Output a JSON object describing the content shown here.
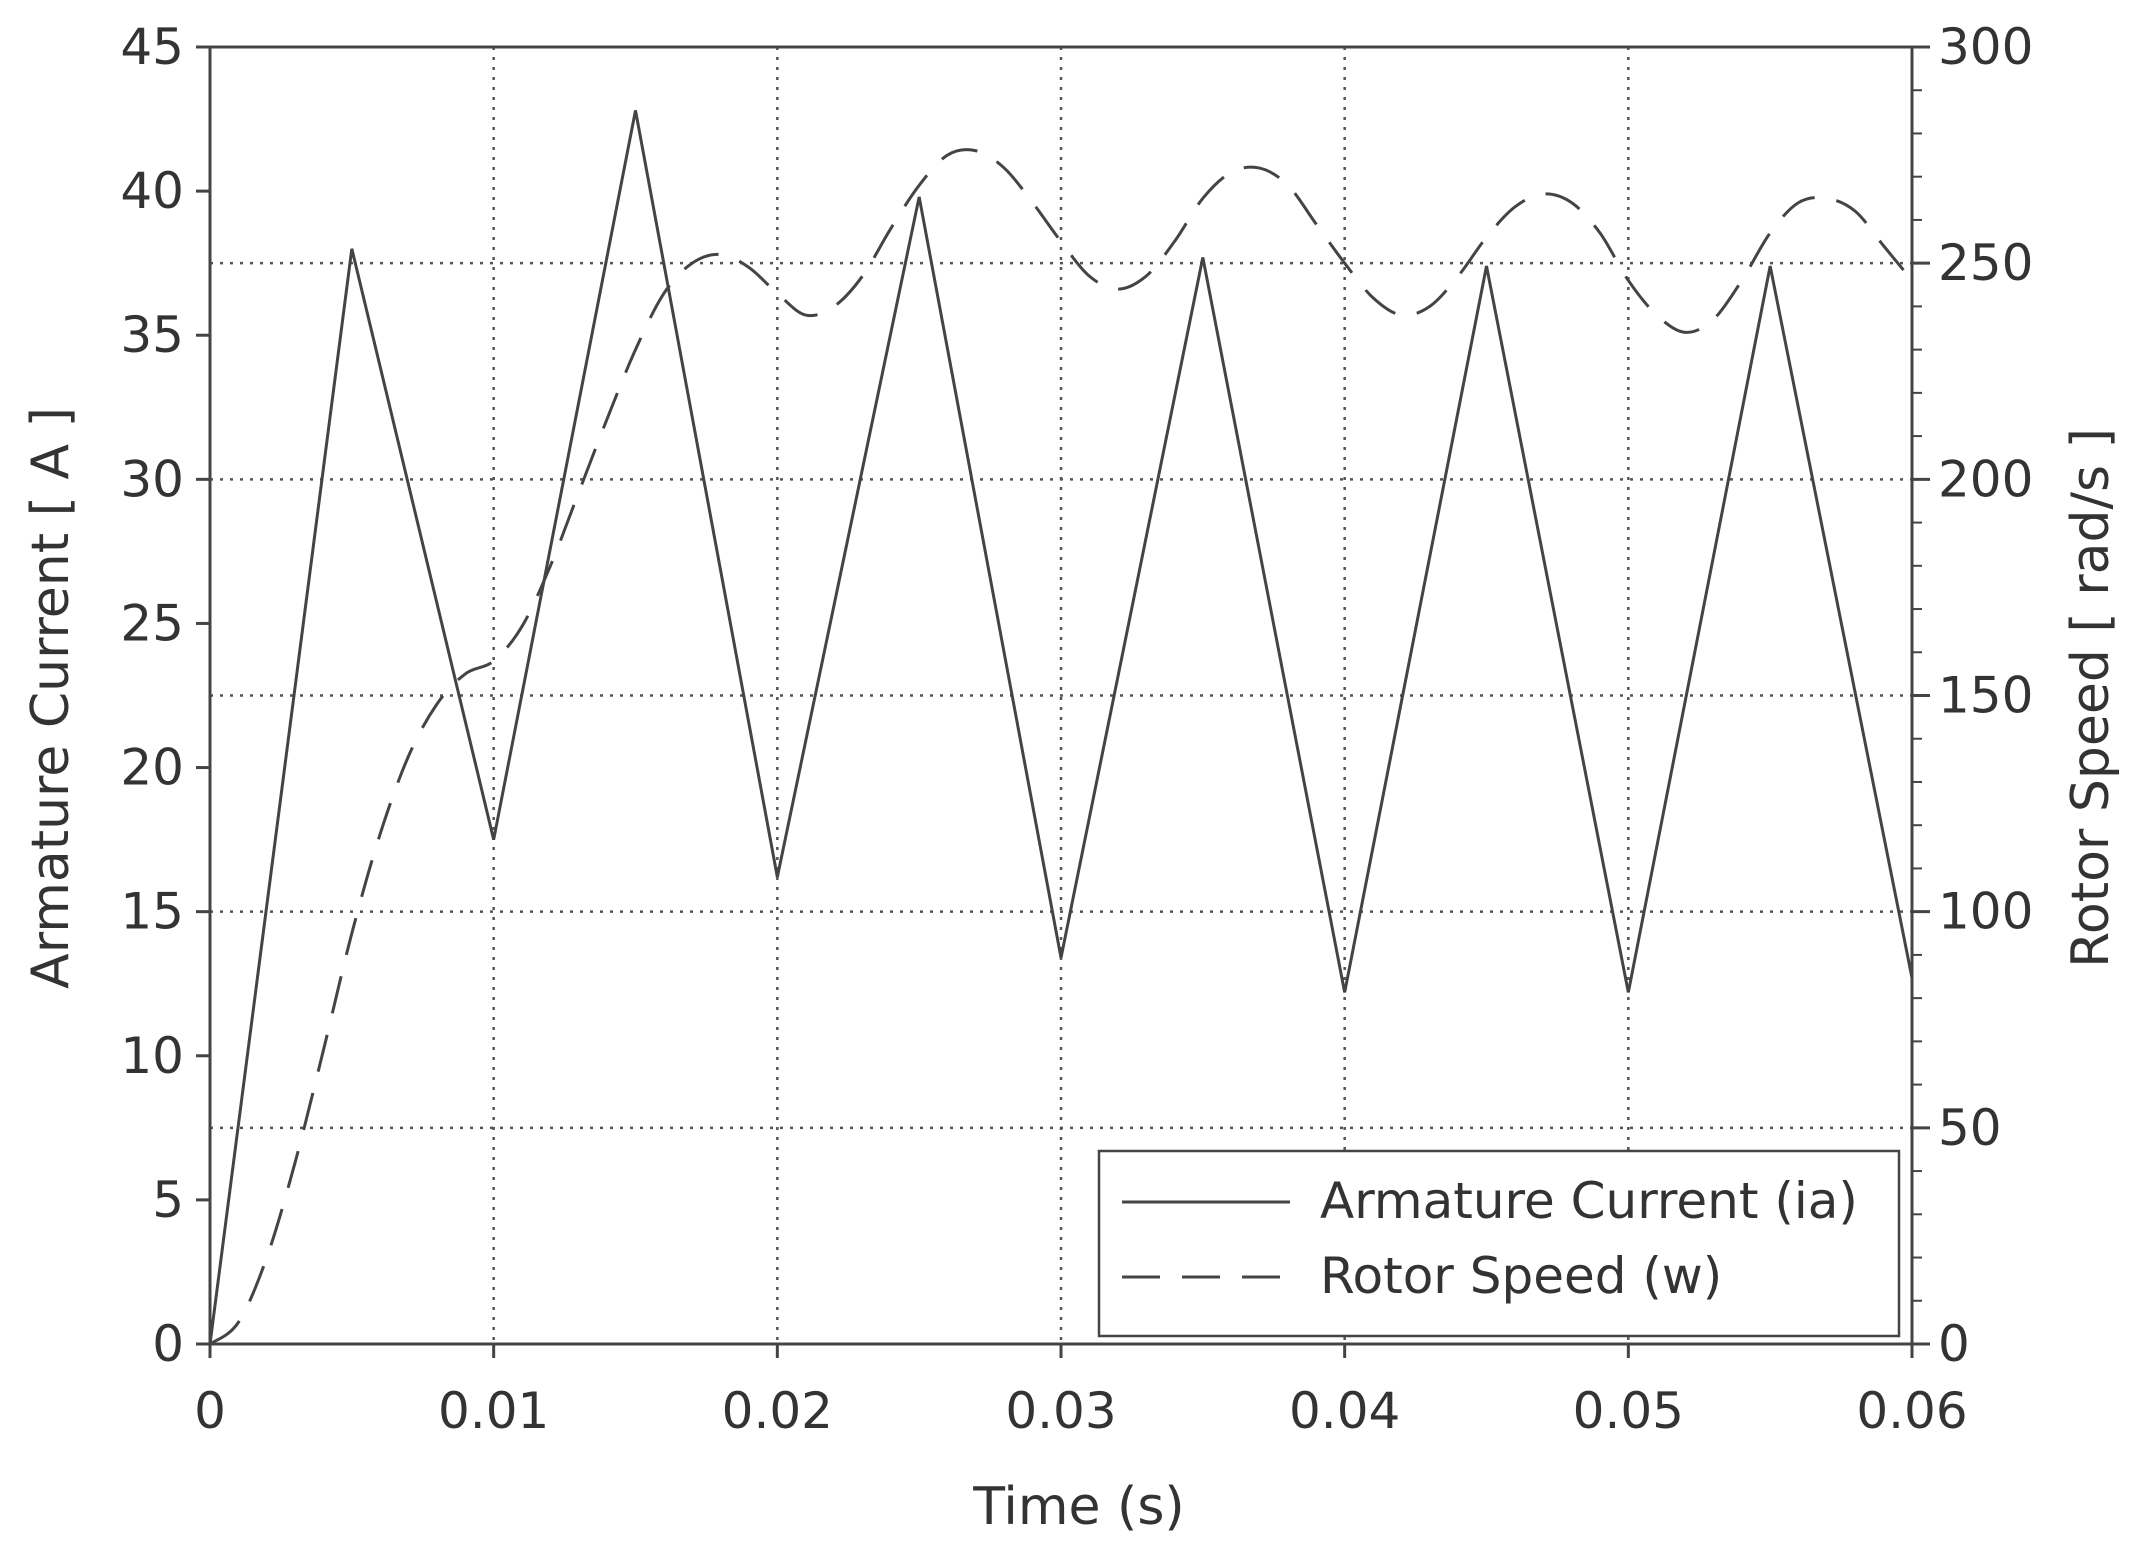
{
  "chart_data": {
    "type": "line",
    "xlabel": "Time (s)",
    "ylabel": "Armature Current  [ A ]",
    "y2label": "Rotor Speed  [ rad/s ]",
    "xlim": [
      0,
      0.06
    ],
    "ylim": [
      0,
      45
    ],
    "y2lim": [
      0,
      300
    ],
    "xticks": [
      0,
      0.01,
      0.02,
      0.03,
      0.04,
      0.05,
      0.06
    ],
    "xtick_labels": [
      "0",
      "0.01",
      "0.02",
      "0.03",
      "0.04",
      "0.05",
      "0.06"
    ],
    "yticks": [
      0,
      5,
      10,
      15,
      20,
      25,
      30,
      35,
      40,
      45
    ],
    "ytick_labels": [
      "0",
      "5",
      "10",
      "15",
      "20",
      "25",
      "30",
      "35",
      "40",
      "45"
    ],
    "y2ticks": [
      0,
      50,
      100,
      150,
      200,
      250,
      300
    ],
    "y2tick_labels": [
      "0",
      "50",
      "100",
      "150",
      "200",
      "250",
      "300"
    ],
    "grid": true,
    "legend_position": "bottom-right",
    "series": [
      {
        "name": "Armature Current (ia)",
        "axis": "left",
        "style": "solid",
        "x": [
          0,
          0.005,
          0.01,
          0.015,
          0.02,
          0.025,
          0.03,
          0.035,
          0.04,
          0.045,
          0.05,
          0.055,
          0.06
        ],
        "y": [
          0,
          38,
          17.5,
          42.8,
          16.2,
          39.8,
          13.4,
          37.7,
          12.2,
          37.4,
          12.2,
          37.4,
          12.7
        ]
      },
      {
        "name": "Rotor Speed (w)",
        "axis": "right",
        "style": "dashed",
        "x": [
          0,
          0.001,
          0.002,
          0.003,
          0.004,
          0.005,
          0.006,
          0.007,
          0.008,
          0.009,
          0.01,
          0.011,
          0.012,
          0.013,
          0.014,
          0.015,
          0.016,
          0.017,
          0.018,
          0.019,
          0.02,
          0.021,
          0.022,
          0.023,
          0.024,
          0.025,
          0.026,
          0.027,
          0.028,
          0.029,
          0.03,
          0.031,
          0.032,
          0.033,
          0.034,
          0.035,
          0.036,
          0.037,
          0.038,
          0.039,
          0.04,
          0.041,
          0.042,
          0.043,
          0.044,
          0.045,
          0.046,
          0.047,
          0.048,
          0.049,
          0.05,
          0.051,
          0.052,
          0.053,
          0.054,
          0.055,
          0.056,
          0.057,
          0.058,
          0.059,
          0.06
        ],
        "y": [
          0,
          5,
          20,
          42,
          68,
          95,
          118,
          136,
          148,
          155,
          158,
          166,
          180,
          197,
          214,
          230,
          243,
          250,
          252,
          249,
          243,
          238,
          240,
          247,
          258,
          268,
          275,
          276,
          272,
          264,
          255,
          247,
          244,
          247,
          255,
          265,
          271,
          272,
          268,
          259,
          250,
          242,
          238,
          240,
          247,
          256,
          263,
          266,
          264,
          257,
          246,
          238,
          234,
          237,
          246,
          257,
          264,
          265,
          262,
          254,
          246
        ]
      }
    ]
  }
}
